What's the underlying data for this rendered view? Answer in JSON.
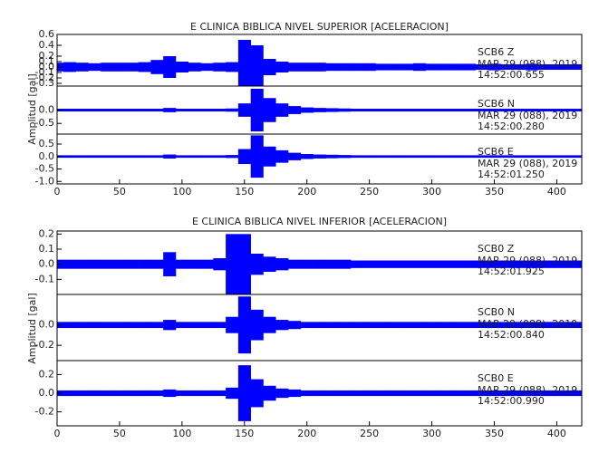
{
  "chart_data": [
    {
      "type": "waveform",
      "title": "E CLINICA BIBLICA NIVEL SUPERIOR [ACELERACION]",
      "y_label": "Amplitud [gal]",
      "xlim": [
        0,
        420
      ],
      "xticks": [
        0,
        50,
        100,
        150,
        200,
        250,
        300,
        350,
        400
      ],
      "x": [
        0,
        10,
        20,
        30,
        40,
        50,
        60,
        70,
        80,
        90,
        100,
        110,
        120,
        130,
        140,
        150,
        160,
        170,
        180,
        190,
        200,
        210,
        220,
        230,
        240,
        250,
        260,
        270,
        280,
        290,
        300,
        310,
        320,
        330,
        340,
        350,
        360,
        370,
        380,
        390,
        400,
        410,
        420
      ],
      "panels": [
        {
          "station": "SCB6   Z",
          "date": "MAR 29 (088), 2019",
          "time": "14:52:00.655",
          "color": "#0000ff",
          "ylim": [
            -0.35,
            0.6
          ],
          "yticks": [
            -0.3,
            -0.2,
            -0.1,
            {
              "value": 0,
              "label": "0.0"
            },
            0.1,
            0.2,
            0.4,
            0.6
          ],
          "values": [
            0.08,
            0.09,
            0.08,
            0.07,
            0.08,
            0.08,
            0.08,
            0.09,
            0.13,
            0.2,
            0.1,
            0.08,
            0.07,
            0.08,
            0.09,
            0.5,
            0.4,
            0.15,
            0.1,
            0.08,
            0.08,
            0.08,
            0.07,
            0.07,
            0.07,
            0.07,
            0.06,
            0.06,
            0.06,
            0.07,
            0.06,
            0.06,
            0.06,
            0.06,
            0.05,
            0.06,
            0.05,
            0.05,
            0.06,
            0.05,
            0.05,
            0.05,
            0.05
          ]
        },
        {
          "station": "SCB6   N",
          "date": "MAR 29 (088), 2019",
          "time": "14:52:00.280",
          "color": "#0000ff",
          "ylim": [
            -0.9,
            0.9
          ],
          "yticks": [
            -0.5,
            {
              "value": 0,
              "label": "0.0"
            }
          ],
          "values": [
            0.05,
            0.05,
            0.05,
            0.05,
            0.05,
            0.05,
            0.05,
            0.05,
            0.05,
            0.08,
            0.05,
            0.05,
            0.05,
            0.05,
            0.06,
            0.25,
            0.8,
            0.45,
            0.25,
            0.15,
            0.1,
            0.08,
            0.07,
            0.06,
            0.05,
            0.05,
            0.05,
            0.05,
            0.05,
            0.05,
            0.05,
            0.05,
            0.05,
            0.05,
            0.05,
            0.05,
            0.05,
            0.05,
            0.05,
            0.05,
            0.05,
            0.05,
            0.05
          ]
        },
        {
          "station": "SCB6   E",
          "date": "MAR 29 (088), 2019",
          "time": "14:52:01.250",
          "color": "#0000ff",
          "ylim": [
            -1.1,
            0.9
          ],
          "yticks": [
            {
              "value": -1,
              "label": "-1.0"
            },
            -0.5,
            {
              "value": 0,
              "label": "0.0"
            },
            0.5
          ],
          "values": [
            0.05,
            0.05,
            0.05,
            0.05,
            0.05,
            0.05,
            0.05,
            0.05,
            0.05,
            0.08,
            0.05,
            0.05,
            0.05,
            0.05,
            0.06,
            0.3,
            0.85,
            0.4,
            0.25,
            0.15,
            0.1,
            0.08,
            0.07,
            0.06,
            0.05,
            0.05,
            0.05,
            0.05,
            0.05,
            0.05,
            0.05,
            0.05,
            0.05,
            0.05,
            0.05,
            0.05,
            0.05,
            0.05,
            0.05,
            0.05,
            0.05,
            0.05,
            0.05
          ]
        }
      ]
    },
    {
      "type": "waveform",
      "title": "E CLINICA BIBLICA NIVEL INFERIOR [ACELERACION]",
      "y_label": "Amplitud [gal]",
      "xlim": [
        0,
        420
      ],
      "xticks": [
        0,
        50,
        100,
        150,
        200,
        250,
        300,
        350,
        400
      ],
      "x": [
        0,
        10,
        20,
        30,
        40,
        50,
        60,
        70,
        80,
        90,
        100,
        110,
        120,
        130,
        140,
        150,
        160,
        170,
        180,
        190,
        200,
        210,
        220,
        230,
        240,
        250,
        260,
        270,
        280,
        290,
        300,
        310,
        320,
        330,
        340,
        350,
        360,
        370,
        380,
        390,
        400,
        410,
        420
      ],
      "panels": [
        {
          "station": "SCB0   Z",
          "date": "MAR 29 (088), 2019",
          "time": "14:52:01.925",
          "color": "#0000ff",
          "ylim": [
            -0.2,
            0.22
          ],
          "yticks": [
            -0.1,
            {
              "value": 0,
              "label": "0.0"
            },
            0.1,
            0.2
          ],
          "values": [
            0.03,
            0.03,
            0.03,
            0.03,
            0.03,
            0.03,
            0.03,
            0.03,
            0.03,
            0.08,
            0.03,
            0.03,
            0.03,
            0.04,
            0.2,
            0.2,
            0.07,
            0.05,
            0.04,
            0.03,
            0.03,
            0.03,
            0.03,
            0.03,
            0.025,
            0.025,
            0.025,
            0.025,
            0.025,
            0.025,
            0.025,
            0.025,
            0.025,
            0.025,
            0.025,
            0.025,
            0.025,
            0.025,
            0.025,
            0.025,
            0.025,
            0.025,
            0.025
          ]
        },
        {
          "station": "SCB0   N",
          "date": "MAR 29 (088), 2019",
          "time": "14:52:00.840",
          "color": "#0000ff",
          "ylim": [
            -0.35,
            0.3
          ],
          "yticks": [
            -0.2,
            {
              "value": 0,
              "label": "0.0"
            }
          ],
          "values": [
            0.03,
            0.03,
            0.03,
            0.03,
            0.03,
            0.03,
            0.03,
            0.03,
            0.03,
            0.05,
            0.03,
            0.03,
            0.03,
            0.03,
            0.08,
            0.28,
            0.15,
            0.08,
            0.05,
            0.04,
            0.03,
            0.03,
            0.03,
            0.03,
            0.03,
            0.03,
            0.03,
            0.03,
            0.03,
            0.03,
            0.03,
            0.03,
            0.03,
            0.03,
            0.03,
            0.03,
            0.03,
            0.03,
            0.03,
            0.03,
            0.03,
            0.03,
            0.03
          ]
        },
        {
          "station": "SCB0   E",
          "date": "MAR 29 (088), 2019",
          "time": "14:52:00.990",
          "color": "#0000ff",
          "ylim": [
            -0.35,
            0.35
          ],
          "yticks": [
            -0.2,
            {
              "value": 0,
              "label": "0.0"
            },
            0.2
          ],
          "values": [
            0.03,
            0.03,
            0.03,
            0.03,
            0.03,
            0.03,
            0.03,
            0.03,
            0.03,
            0.04,
            0.03,
            0.03,
            0.03,
            0.03,
            0.06,
            0.3,
            0.15,
            0.08,
            0.05,
            0.04,
            0.03,
            0.03,
            0.03,
            0.03,
            0.03,
            0.03,
            0.03,
            0.03,
            0.03,
            0.03,
            0.03,
            0.03,
            0.03,
            0.03,
            0.03,
            0.03,
            0.03,
            0.03,
            0.03,
            0.03,
            0.03,
            0.03,
            0.03
          ]
        }
      ]
    }
  ]
}
